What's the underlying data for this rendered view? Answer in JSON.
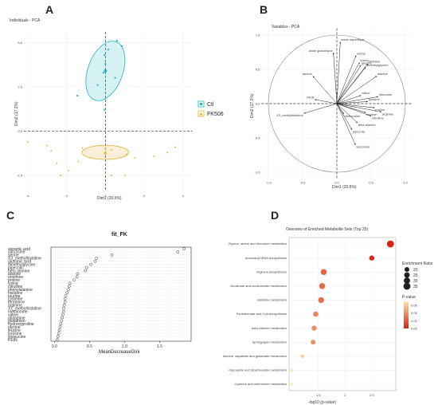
{
  "panel_letters": [
    "A",
    "B",
    "C",
    "D"
  ],
  "chart_data": [
    {
      "type": "scatter",
      "title": "Individuals - PCA",
      "xlabel": "Dim1 (20.6%)",
      "ylabel": "Dim2 (17.2%)",
      "x_ticks": [
        "-4",
        "-2",
        "0",
        "2",
        "4"
      ],
      "y_ticks": [
        "-2.5",
        "0.0",
        "2.5",
        "5.0"
      ],
      "xlim": [
        -4.2,
        4.5
      ],
      "ylim": [
        -3.4,
        5.6
      ],
      "legend": {
        "position": "right",
        "entries": [
          "Ctl",
          "FK506"
        ]
      },
      "colors": {
        "Ctl": "#1ab7c4",
        "FK506": "#e6ad2a"
      },
      "series": [
        {
          "name": "Ctl",
          "points": [
            [
              0.6,
              5.1
            ],
            [
              0.85,
              4.8
            ],
            [
              0.15,
              4.6
            ],
            [
              -0.05,
              4.3
            ],
            [
              0.0,
              3.8
            ],
            [
              -0.1,
              3.3
            ],
            [
              0.5,
              3.0
            ],
            [
              -0.4,
              2.6
            ],
            [
              -1.45,
              2.0
            ],
            [
              -0.05,
              1.2
            ]
          ],
          "centroid": [
            0.0,
            3.4
          ],
          "ellipse": {
            "rx": 0.9,
            "ry": 1.75,
            "angle": 20
          }
        },
        {
          "name": "FK506",
          "points": [
            [
              -4.0,
              -0.6
            ],
            [
              -3.0,
              -0.8
            ],
            [
              -2.8,
              -1.1
            ],
            [
              -2.5,
              -1.8
            ],
            [
              -1.9,
              -2.2
            ],
            [
              -1.4,
              -1.7
            ],
            [
              -1.2,
              -0.95
            ],
            [
              0.0,
              -1.0
            ],
            [
              0.0,
              -1.3
            ],
            [
              0.3,
              -1.05
            ],
            [
              0.3,
              -2.5
            ],
            [
              1.1,
              -1.3
            ],
            [
              1.5,
              -1.5
            ],
            [
              2.5,
              -1.4
            ],
            [
              3.2,
              -1.2
            ],
            [
              3.6,
              -0.9
            ],
            [
              -2.3,
              -2.5
            ],
            [
              1.0,
              -2.5
            ]
          ],
          "centroid": [
            0.0,
            -1.2
          ],
          "ellipse": {
            "rx": 1.2,
            "ry": 0.4,
            "angle": 0
          }
        }
      ]
    },
    {
      "type": "scatter",
      "title": "Variables - PCA",
      "xlabel": "Dim1 (20.6%)",
      "ylabel": "Dim2 (17.2%)",
      "x_ticks": [
        "-1.0",
        "-0.5",
        "0.0",
        "0.5",
        "1.0"
      ],
      "y_ticks": [
        "-1.0",
        "-0.5",
        "0.0",
        "0.5",
        "1.0"
      ],
      "xlim": [
        -1.05,
        1.05
      ],
      "ylim": [
        -1.05,
        1.05
      ],
      "vectors": [
        {
          "label": "acide aspartique",
          "x": 0.05,
          "y": 0.9
        },
        {
          "label": "acide glutamique",
          "x": -0.05,
          "y": 0.74
        },
        {
          "label": "serine",
          "x": 0.28,
          "y": 0.7
        },
        {
          "label": "histidine",
          "x": 0.45,
          "y": 0.58
        },
        {
          "label": "lysine",
          "x": 0.33,
          "y": 0.6
        },
        {
          "label": "glycine",
          "x": 0.35,
          "y": 0.56
        },
        {
          "label": "dimethylglycine",
          "x": 0.42,
          "y": 0.53
        },
        {
          "label": "alanine",
          "x": 0.58,
          "y": 0.4
        },
        {
          "label": "taurine",
          "x": -0.35,
          "y": 0.4
        },
        {
          "label": "PEtN",
          "x": -0.32,
          "y": 0.06
        },
        {
          "label": "X3_methylhistidine",
          "x": -0.48,
          "y": -0.14
        },
        {
          "label": "tyrosine",
          "x": 0.45,
          "y": 0.03
        },
        {
          "label": "proline",
          "x": 0.55,
          "y": -0.06
        },
        {
          "label": "leucine",
          "x": 0.42,
          "y": -0.13
        },
        {
          "label": "citrulline",
          "x": 0.5,
          "y": -0.18
        },
        {
          "label": "pipecolic",
          "x": 0.22,
          "y": -0.38
        },
        {
          "label": "sarcosine",
          "x": 0.27,
          "y": -0.6
        },
        {
          "label": "methionine",
          "x": 0.1,
          "y": -0.15
        },
        {
          "label": "valine",
          "x": 0.35,
          "y": 0.12
        },
        {
          "label": "threonine",
          "x": 0.6,
          "y": 0.1
        },
        {
          "label": "beta alanine",
          "x": 0.3,
          "y": -0.28
        },
        {
          "label": "arginine",
          "x": 0.65,
          "y": -0.12
        }
      ]
    },
    {
      "type": "scatter",
      "title": "fit_FK",
      "xlabel": "MeanDecreaseGini",
      "x_ticks": [
        "0.0",
        "0.5",
        "1.0",
        "1.5"
      ],
      "xlim": [
        -0.05,
        1.95
      ],
      "categories": [
        "aspartic acid",
        "sarcosine",
        "serine",
        "X3_methylhistidine",
        "glutamic acid",
        "dimethylglycine",
        "pipecolic",
        "beta alanine",
        "alanine",
        "ornithine",
        "proline",
        "lysine",
        "citrulline",
        "phenylalanine",
        "histidine",
        "taurine",
        "cysteine",
        "threonine",
        "arginine",
        "X1_methylhistidine",
        "methionine",
        "valine",
        "glutamine",
        "glutathion",
        "hydroxyproline",
        "glycine",
        "leucine",
        "tyrosine",
        "isoleucine",
        "PEtN"
      ],
      "values": [
        1.85,
        1.76,
        0.82,
        0.6,
        0.58,
        0.52,
        0.46,
        0.44,
        0.33,
        0.32,
        0.28,
        0.22,
        0.21,
        0.2,
        0.18,
        0.16,
        0.15,
        0.15,
        0.14,
        0.13,
        0.13,
        0.12,
        0.11,
        0.1,
        0.09,
        0.08,
        0.07,
        0.06,
        0.05,
        0.04
      ]
    },
    {
      "type": "scatter",
      "title": "Overview of Enriched Metabolite Sets (Top 25)",
      "xlabel": "-log10 (p-value)",
      "x_ticks": [
        "1.5",
        "2",
        "2.5"
      ],
      "xlim": [
        0.95,
        2.95
      ],
      "categories": [
        "Glycine, serine and threonine metabolism",
        "Aminoacyl-tRNA biosynthesis",
        "Arginine biosynthesis",
        "Nicotinate and nicotinamide metabolism",
        "Histidine metabolism",
        "Pantothenate and CoA biosynthesis",
        "beta-Alanine metabolism",
        "Sphingolipid metabolism",
        "Alanine, aspartate and glutamate metabolism",
        "Glyoxylate and dicarboxylate metabolism",
        "Cysteine and methionine metabolism"
      ],
      "values": [
        2.85,
        2.5,
        1.6,
        1.57,
        1.55,
        1.45,
        1.42,
        1.4,
        1.2,
        1.0,
        1.0
      ],
      "enrichment_ratio": [
        35,
        22,
        28,
        28,
        27,
        23,
        22,
        20,
        12,
        5,
        4
      ],
      "p_value": [
        0.0014,
        0.003,
        0.025,
        0.027,
        0.028,
        0.035,
        0.038,
        0.04,
        0.063,
        0.1,
        0.1
      ],
      "size_legend": {
        "title": "Enrichment Ratio",
        "labels": [
          "20",
          "25",
          "30",
          "35"
        ]
      },
      "color_legend": {
        "title": "P-value",
        "labels": [
          "0.06",
          "0.04",
          "0.02",
          "0.00"
        ]
      }
    }
  ]
}
